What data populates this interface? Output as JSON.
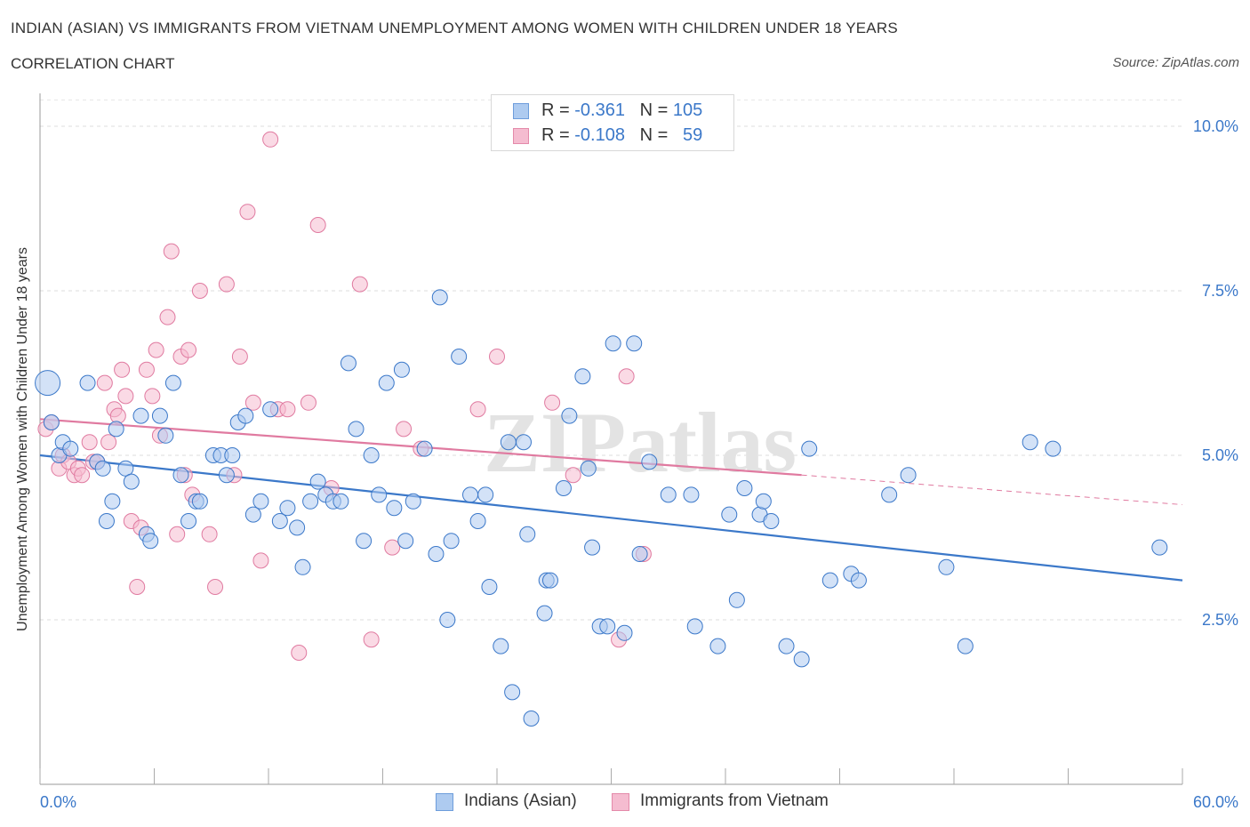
{
  "title": "INDIAN (ASIAN) VS IMMIGRANTS FROM VIETNAM UNEMPLOYMENT AMONG WOMEN WITH CHILDREN UNDER 18 YEARS",
  "subtitle": "CORRELATION CHART",
  "source": "Source: ZipAtlas.com",
  "watermark": "ZIPatlas",
  "legend": {
    "r_label": "R =",
    "n_label": "N =",
    "series": [
      {
        "r": "-0.361",
        "n": "105"
      },
      {
        "r": "-0.108",
        "n": "59"
      }
    ]
  },
  "chart_data": {
    "type": "scatter",
    "title": "INDIAN (ASIAN) VS IMMIGRANTS FROM VIETNAM UNEMPLOYMENT AMONG WOMEN WITH CHILDREN UNDER 18 YEARS",
    "ylabel": "Unemployment Among Women with Children Under 18 years",
    "xlabel": "",
    "xlim": [
      0,
      60
    ],
    "ylim": [
      0,
      10.5
    ],
    "x_tick_labels": [
      "0.0%",
      "60.0%"
    ],
    "y_ticks": [
      2.5,
      5.0,
      7.5,
      10.0
    ],
    "y_tick_labels": [
      "2.5%",
      "5.0%",
      "7.5%",
      "10.0%"
    ],
    "grid": true,
    "legend_position": "top-center and bottom",
    "colors": {
      "indians": "#3b78c9",
      "indians_fill": "#aecbf0",
      "vietnam": "#e07aa0",
      "vietnam_fill": "#f5bcd0"
    },
    "series": [
      {
        "name": "Indians (Asian)",
        "r": -0.361,
        "n": 105,
        "trend": {
          "x0": 0,
          "y0": 5.0,
          "x1": 60,
          "y1": 3.1
        },
        "points": [
          [
            0.4,
            6.1
          ],
          [
            1.0,
            5.0
          ],
          [
            1.2,
            5.2
          ],
          [
            1.6,
            5.1
          ],
          [
            2.5,
            6.1
          ],
          [
            3.0,
            4.9
          ],
          [
            3.3,
            4.8
          ],
          [
            3.5,
            4.0
          ],
          [
            3.8,
            4.3
          ],
          [
            4.0,
            5.4
          ],
          [
            4.5,
            4.8
          ],
          [
            4.8,
            4.6
          ],
          [
            5.3,
            5.6
          ],
          [
            5.6,
            3.8
          ],
          [
            5.8,
            3.7
          ],
          [
            6.3,
            5.6
          ],
          [
            6.6,
            5.3
          ],
          [
            7.0,
            6.1
          ],
          [
            7.4,
            4.7
          ],
          [
            7.8,
            4.0
          ],
          [
            8.2,
            4.3
          ],
          [
            8.4,
            4.3
          ],
          [
            9.1,
            5.0
          ],
          [
            9.5,
            5.0
          ],
          [
            9.8,
            4.7
          ],
          [
            10.1,
            5.0
          ],
          [
            10.4,
            5.5
          ],
          [
            10.8,
            5.6
          ],
          [
            11.2,
            4.1
          ],
          [
            11.6,
            4.3
          ],
          [
            12.1,
            5.7
          ],
          [
            12.6,
            4.0
          ],
          [
            13.0,
            4.2
          ],
          [
            13.5,
            3.9
          ],
          [
            13.8,
            3.3
          ],
          [
            14.2,
            4.3
          ],
          [
            14.6,
            4.6
          ],
          [
            15.0,
            4.4
          ],
          [
            15.4,
            4.3
          ],
          [
            15.8,
            4.3
          ],
          [
            16.2,
            6.4
          ],
          [
            16.6,
            5.4
          ],
          [
            17.0,
            3.7
          ],
          [
            17.4,
            5.0
          ],
          [
            17.8,
            4.4
          ],
          [
            18.2,
            6.1
          ],
          [
            18.6,
            4.2
          ],
          [
            19.0,
            6.3
          ],
          [
            19.2,
            3.7
          ],
          [
            19.6,
            4.3
          ],
          [
            20.2,
            5.1
          ],
          [
            20.8,
            3.5
          ],
          [
            21.0,
            7.4
          ],
          [
            21.4,
            2.5
          ],
          [
            21.6,
            3.7
          ],
          [
            22.0,
            6.5
          ],
          [
            22.6,
            4.4
          ],
          [
            23.0,
            4.0
          ],
          [
            23.4,
            4.4
          ],
          [
            23.6,
            3.0
          ],
          [
            24.2,
            2.1
          ],
          [
            24.6,
            5.2
          ],
          [
            24.8,
            1.4
          ],
          [
            25.4,
            5.2
          ],
          [
            25.6,
            3.8
          ],
          [
            25.8,
            1.0
          ],
          [
            26.5,
            2.6
          ],
          [
            26.6,
            3.1
          ],
          [
            26.8,
            3.1
          ],
          [
            27.5,
            4.5
          ],
          [
            27.8,
            5.6
          ],
          [
            28.5,
            6.2
          ],
          [
            28.8,
            4.8
          ],
          [
            29.0,
            3.6
          ],
          [
            29.4,
            2.4
          ],
          [
            29.8,
            2.4
          ],
          [
            30.1,
            6.7
          ],
          [
            30.7,
            2.3
          ],
          [
            31.2,
            6.7
          ],
          [
            31.5,
            3.5
          ],
          [
            32.0,
            4.9
          ],
          [
            33.0,
            4.4
          ],
          [
            34.2,
            4.4
          ],
          [
            34.4,
            2.4
          ],
          [
            35.6,
            2.1
          ],
          [
            36.2,
            4.1
          ],
          [
            36.6,
            2.8
          ],
          [
            37.0,
            4.5
          ],
          [
            37.8,
            4.1
          ],
          [
            38.0,
            4.3
          ],
          [
            38.4,
            4.0
          ],
          [
            39.2,
            2.1
          ],
          [
            40.0,
            1.9
          ],
          [
            40.4,
            5.1
          ],
          [
            41.5,
            3.1
          ],
          [
            42.6,
            3.2
          ],
          [
            43.0,
            3.1
          ],
          [
            44.6,
            4.4
          ],
          [
            45.6,
            4.7
          ],
          [
            47.6,
            3.3
          ],
          [
            48.6,
            2.1
          ],
          [
            52.0,
            5.2
          ],
          [
            53.2,
            5.1
          ],
          [
            58.8,
            3.6
          ],
          [
            0.6,
            5.5
          ]
        ]
      },
      {
        "name": "Immigrants from Vietnam",
        "r": -0.108,
        "n": 59,
        "trend": {
          "x0": 0,
          "y0": 5.55,
          "x1": 40,
          "y1": 4.7,
          "dash_x1": 60,
          "dash_y1": 4.25
        },
        "points": [
          [
            0.3,
            5.4
          ],
          [
            0.6,
            5.5
          ],
          [
            1.0,
            4.8
          ],
          [
            1.2,
            5.0
          ],
          [
            1.5,
            4.9
          ],
          [
            1.8,
            4.7
          ],
          [
            2.0,
            4.8
          ],
          [
            2.2,
            4.7
          ],
          [
            2.6,
            5.2
          ],
          [
            2.8,
            4.9
          ],
          [
            3.0,
            4.9
          ],
          [
            3.4,
            6.1
          ],
          [
            3.6,
            5.2
          ],
          [
            3.9,
            5.7
          ],
          [
            4.1,
            5.6
          ],
          [
            4.3,
            6.3
          ],
          [
            4.5,
            5.9
          ],
          [
            4.8,
            4.0
          ],
          [
            5.1,
            3.0
          ],
          [
            5.3,
            3.9
          ],
          [
            5.6,
            6.3
          ],
          [
            5.9,
            5.9
          ],
          [
            6.1,
            6.6
          ],
          [
            6.3,
            5.3
          ],
          [
            6.7,
            7.1
          ],
          [
            6.9,
            8.1
          ],
          [
            7.2,
            3.8
          ],
          [
            7.4,
            6.5
          ],
          [
            7.6,
            4.7
          ],
          [
            7.8,
            6.6
          ],
          [
            8.0,
            4.4
          ],
          [
            8.4,
            7.5
          ],
          [
            8.9,
            3.8
          ],
          [
            9.2,
            3.0
          ],
          [
            9.8,
            7.6
          ],
          [
            10.2,
            4.7
          ],
          [
            10.5,
            6.5
          ],
          [
            10.9,
            8.7
          ],
          [
            11.2,
            5.8
          ],
          [
            11.6,
            3.4
          ],
          [
            12.1,
            9.8
          ],
          [
            12.5,
            5.7
          ],
          [
            13.0,
            5.7
          ],
          [
            13.6,
            2.0
          ],
          [
            14.1,
            5.8
          ],
          [
            14.6,
            8.5
          ],
          [
            15.3,
            4.5
          ],
          [
            16.8,
            7.6
          ],
          [
            17.4,
            2.2
          ],
          [
            18.5,
            3.6
          ],
          [
            19.1,
            5.4
          ],
          [
            20.0,
            5.1
          ],
          [
            23.0,
            5.7
          ],
          [
            24.0,
            6.5
          ],
          [
            26.9,
            5.8
          ],
          [
            28.0,
            4.7
          ],
          [
            30.4,
            2.2
          ],
          [
            30.8,
            6.2
          ],
          [
            31.7,
            3.5
          ]
        ]
      }
    ]
  }
}
